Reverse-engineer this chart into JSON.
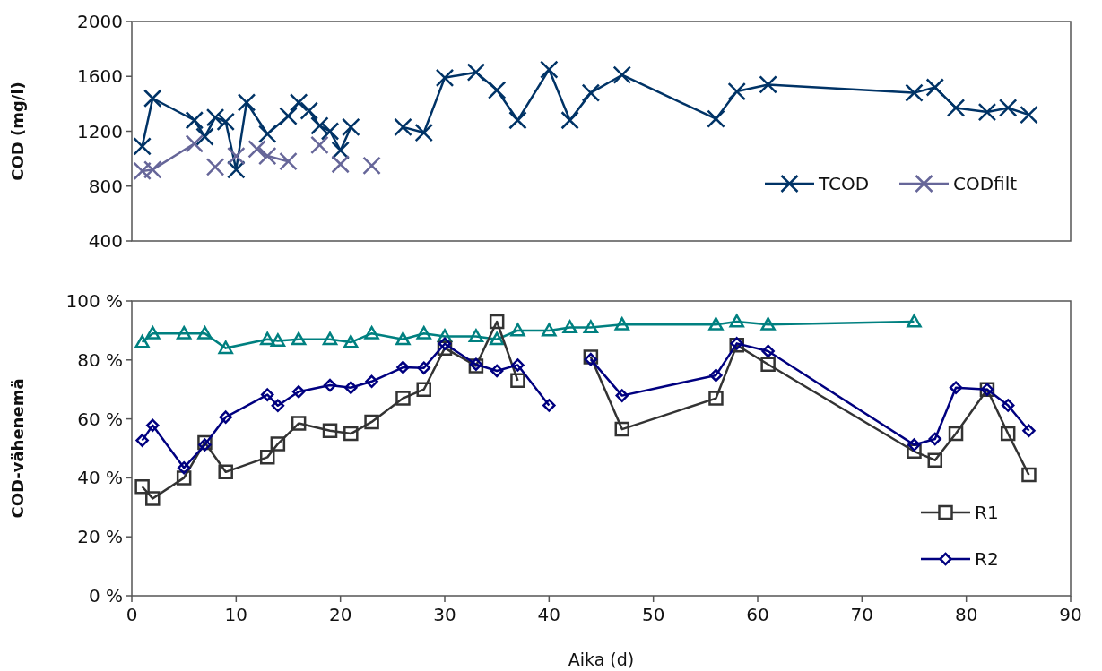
{
  "chart_data": [
    {
      "type": "line",
      "ylabel": "COD (mg/l)",
      "xlim": [
        0,
        90
      ],
      "xticks": [
        0,
        10,
        20,
        30,
        40,
        50,
        60,
        70,
        80,
        90
      ],
      "ylim": [
        400,
        2000
      ],
      "yticks": [
        400,
        800,
        1200,
        1600,
        2000
      ],
      "tick_labels": "y",
      "legend": "bottom right",
      "series": [
        {
          "name": "TCOD",
          "color": "#003366",
          "marker": "cross",
          "x": [
            1,
            2,
            6,
            7,
            8,
            9,
            10,
            11,
            13,
            15,
            16,
            17,
            18,
            19,
            20,
            21,
            24,
            26,
            28,
            30,
            33,
            35,
            37,
            40,
            42,
            44,
            47,
            56,
            58,
            61,
            75,
            77,
            79,
            82,
            84,
            86
          ],
          "values": [
            1090,
            1440,
            1280,
            1160,
            1300,
            1270,
            920,
            1410,
            1180,
            1310,
            1410,
            1350,
            1240,
            1200,
            1060,
            1230,
            null,
            1230,
            1190,
            1590,
            1630,
            1500,
            1280,
            1650,
            1280,
            1480,
            1610,
            1290,
            1490,
            1540,
            1480,
            1520,
            1370,
            1340,
            1370,
            1320
          ]
        },
        {
          "name": "CODfilt",
          "color": "#666699",
          "marker": "cross",
          "x": [
            1,
            2,
            6,
            7,
            8,
            9,
            10,
            11,
            12,
            13,
            15,
            16,
            18,
            19,
            20,
            21,
            23
          ],
          "values": [
            910,
            920,
            1110,
            null,
            940,
            null,
            1020,
            null,
            1070,
            1020,
            980,
            null,
            1100,
            null,
            960,
            null,
            950
          ]
        }
      ]
    },
    {
      "type": "line",
      "xlabel": "Aika (d)",
      "ylabel": "COD-vähenemä",
      "xlim": [
        0,
        90
      ],
      "xticks": [
        0,
        10,
        20,
        30,
        40,
        50,
        60,
        70,
        80,
        90
      ],
      "ylim": [
        0,
        100
      ],
      "yticks": [
        {
          "value": 0,
          "label": "0 %"
        },
        {
          "value": 20,
          "label": "20 %"
        },
        {
          "value": 40,
          "label": "40 %"
        },
        {
          "value": 60,
          "label": "60 %"
        },
        {
          "value": 80,
          "label": "80 %"
        },
        {
          "value": 100,
          "label": "100 %"
        }
      ],
      "legend": "bottom right",
      "series": [
        {
          "color": "#008080",
          "marker": "triangle",
          "x": [
            1,
            2,
            5,
            7,
            9,
            13,
            14,
            16,
            19,
            21,
            23,
            26,
            28,
            30,
            33,
            35,
            37,
            40,
            42,
            44,
            47,
            56,
            58,
            61,
            75
          ],
          "values": [
            86,
            89,
            89,
            89,
            84,
            87,
            86.5,
            87,
            87,
            86,
            89,
            87,
            89,
            88,
            88,
            87,
            90,
            90,
            91,
            91,
            92,
            92,
            93,
            92,
            93
          ]
        },
        {
          "name": "R1",
          "color": "#333333",
          "marker": "square",
          "x": [
            1,
            2,
            5,
            7,
            9,
            13,
            14,
            16,
            19,
            21,
            23,
            26,
            28,
            30,
            33,
            35,
            37,
            40,
            44,
            47,
            56,
            58,
            61,
            75,
            77,
            79,
            82,
            84,
            86
          ],
          "values": [
            37,
            33,
            40,
            52,
            42,
            47,
            51.5,
            58.5,
            56,
            55,
            59,
            67,
            70,
            84,
            78,
            93,
            73,
            null,
            81,
            56.5,
            67,
            85,
            78.5,
            49,
            46,
            55,
            70,
            55,
            41
          ]
        },
        {
          "name": "R2",
          "color": "#000080",
          "marker": "diamond",
          "x": [
            1,
            2,
            5,
            7,
            9,
            13,
            14,
            16,
            19,
            21,
            23,
            26,
            28,
            30,
            33,
            35,
            37,
            40,
            42,
            44,
            47,
            56,
            58,
            61,
            75,
            77,
            79,
            82,
            84,
            86
          ],
          "values": [
            52.7,
            57.8,
            43.4,
            51.2,
            60.6,
            68.2,
            64.5,
            69.2,
            71.4,
            70.6,
            72.7,
            77.5,
            77.3,
            85.5,
            78.5,
            76.3,
            78.3,
            64.6,
            null,
            80.2,
            67.9,
            74.8,
            85.6,
            83,
            51.2,
            53.2,
            70.6,
            70,
            64.6,
            56
          ]
        }
      ]
    }
  ]
}
